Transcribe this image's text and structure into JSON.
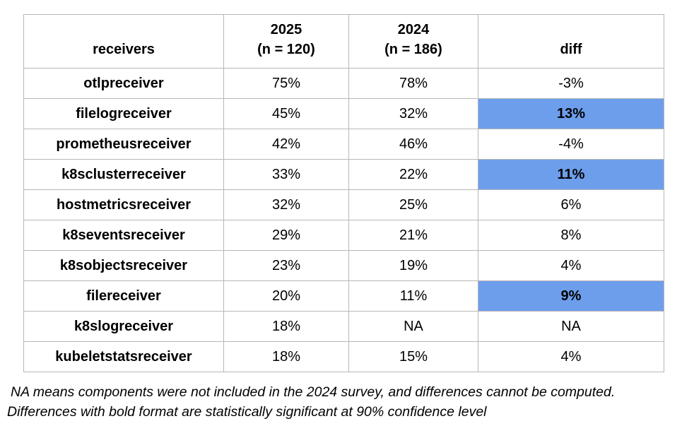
{
  "chart_data": {
    "type": "table",
    "title": "",
    "headers": [
      "receivers",
      "2025\n(n = 120)",
      "2024\n(n = 186)",
      "diff"
    ],
    "columns": [
      "receivers",
      "2025 (n = 120)",
      "2024 (n = 186)",
      "diff"
    ],
    "rows": [
      {
        "receiver": "otlpreceiver",
        "v2025": "75%",
        "v2024": "78%",
        "diff": "-3%",
        "significant": false
      },
      {
        "receiver": "filelogreceiver",
        "v2025": "45%",
        "v2024": "32%",
        "diff": "13%",
        "significant": true
      },
      {
        "receiver": "prometheusreceiver",
        "v2025": "42%",
        "v2024": "46%",
        "diff": "-4%",
        "significant": false
      },
      {
        "receiver": "k8sclusterreceiver",
        "v2025": "33%",
        "v2024": "22%",
        "diff": "11%",
        "significant": true
      },
      {
        "receiver": "hostmetricsreceiver",
        "v2025": "32%",
        "v2024": "25%",
        "diff": "6%",
        "significant": false
      },
      {
        "receiver": "k8seventsreceiver",
        "v2025": "29%",
        "v2024": "21%",
        "diff": "8%",
        "significant": false
      },
      {
        "receiver": "k8sobjectsreceiver",
        "v2025": "23%",
        "v2024": "19%",
        "diff": "4%",
        "significant": false
      },
      {
        "receiver": "filereceiver",
        "v2025": "20%",
        "v2024": "11%",
        "diff": "9%",
        "significant": true
      },
      {
        "receiver": "k8slogreceiver",
        "v2025": "18%",
        "v2024": "NA",
        "diff": "NA",
        "significant": false
      },
      {
        "receiver": "kubeletstatsreceiver",
        "v2025": "18%",
        "v2024": "15%",
        "diff": "4%",
        "significant": false
      }
    ],
    "layout_hints": {
      "highlight_meaning": "blue background + bold diff = statistically significant",
      "sample_size_2025": 120,
      "sample_size_2024": 186
    }
  },
  "footnotes": {
    "line1": "NA means components were not included in the 2024 survey, and differences cannot be computed.",
    "line2": "Differences with bold format are statistically significant at 90% confidence level"
  },
  "colors": {
    "highlight": "#6d9eeb",
    "border": "#b7b7b7",
    "text": "#000000",
    "background": "#ffffff"
  }
}
